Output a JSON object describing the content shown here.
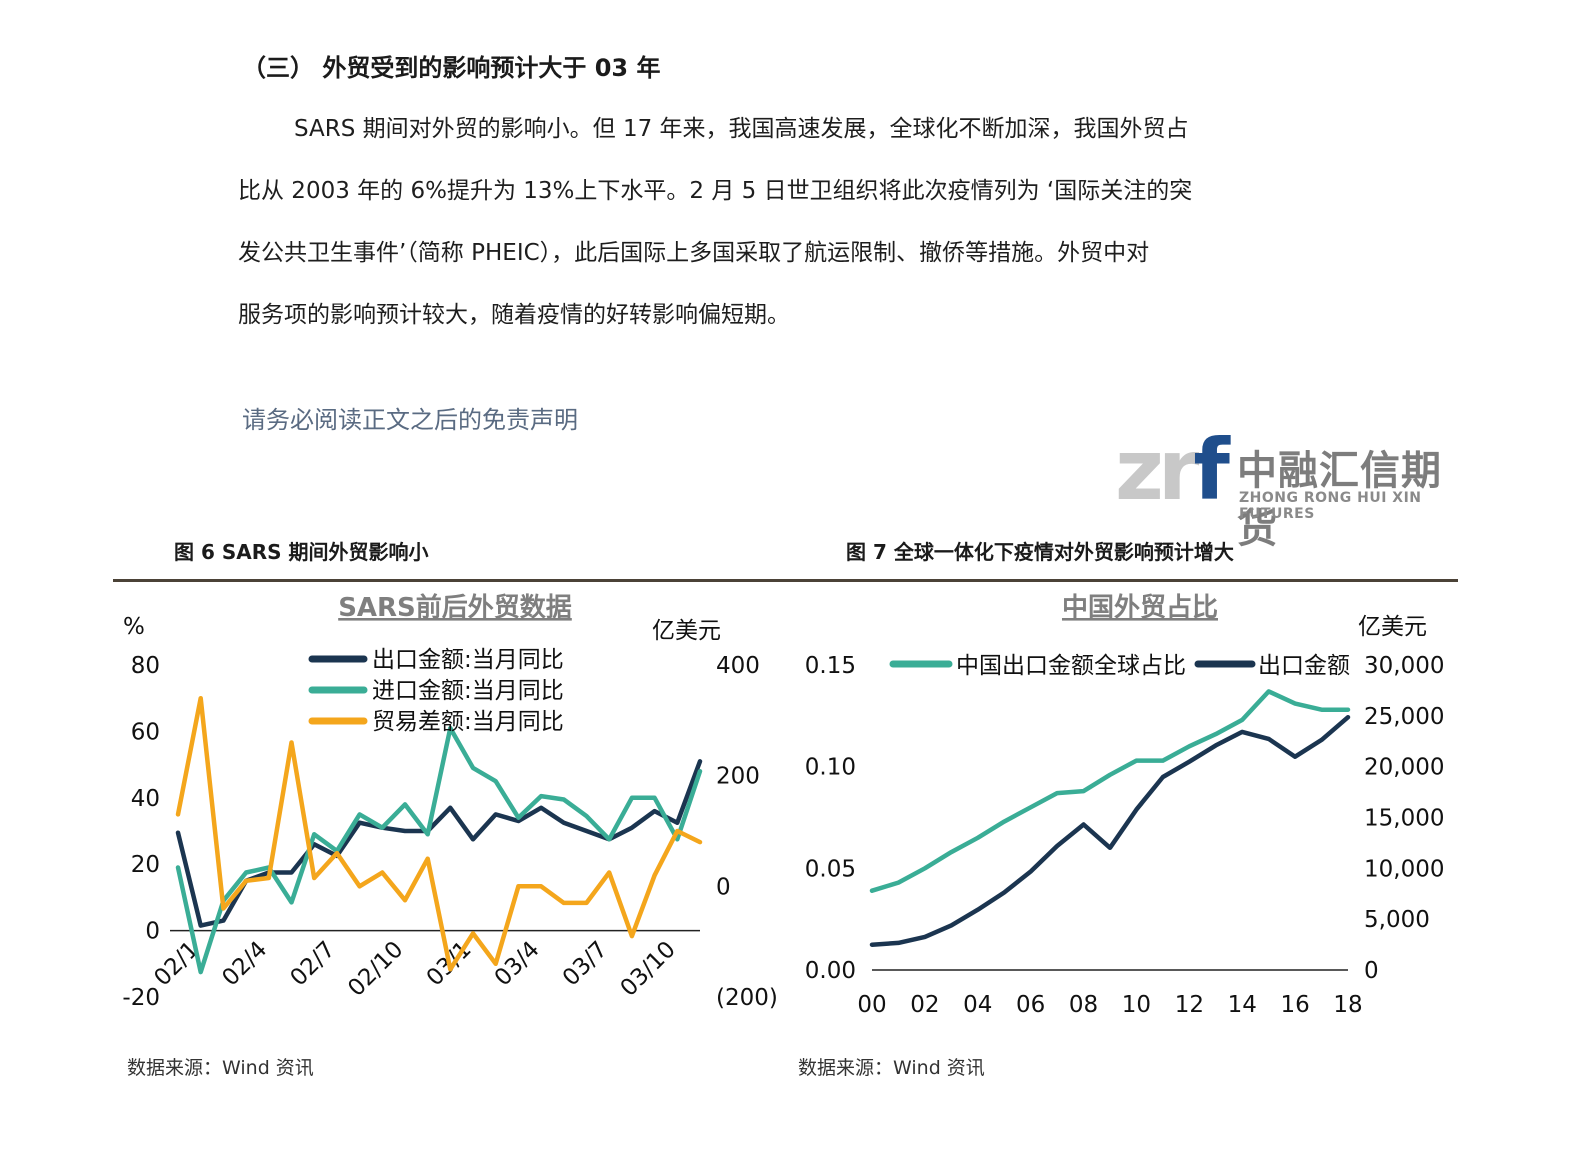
{
  "section": {
    "title": "（三）  外贸受到的影响预计大于 03 年"
  },
  "paragraph": {
    "lines": [
      "SARS 期间对外贸的影响小。但 17 年来，我国高速发展，全球化不断加深，我国外贸占",
      "比从 2003 年的 6%提升为 13%上下水平。2 月 5 日世卫组织将此次疫情列为 ‘国际关注的突",
      "发公共卫生事件’（简称 PHEIC），此后国际上多国采取了航运限制、撤侨等措施。外贸中对",
      "服务项的影响预计较大，随着疫情的好转影响偏短期。"
    ]
  },
  "disclaimer": "请务必阅读正文之后的免责声明",
  "logo": {
    "mark_zr": "zr",
    "mark_f": "f",
    "cn": "中融汇信期货",
    "en": "ZHONG RONG HUI XIN FUTURES"
  },
  "figures": {
    "fig6_caption": "图 6 SARS 期间外贸影响小",
    "fig7_caption": "图 7 全球一体化下疫情对外贸影响预计增大",
    "fig6_source": "数据来源：Wind 资讯",
    "fig7_source": "数据来源：Wind 资讯"
  },
  "colors": {
    "navy": "#1b3550",
    "teal": "#3aad96",
    "orange": "#f4a61c",
    "neg_label": "#c00000"
  },
  "chart_data": [
    {
      "type": "line",
      "title": "SARS前后外贸数据",
      "ylabel": "%",
      "y2label": "亿美元",
      "ylim": [
        -20,
        80
      ],
      "yticks": [
        "80",
        "60",
        "40",
        "20",
        "0",
        "-20"
      ],
      "y2lim": [
        -200,
        400
      ],
      "y2ticks": [
        "400",
        "200",
        "0",
        "(200)"
      ],
      "x_tick_labels": [
        "02/1",
        "02/4",
        "02/7",
        "02/10",
        "03/1",
        "03/4",
        "03/7",
        "03/10"
      ],
      "x_tick_index": [
        0,
        3,
        6,
        9,
        12,
        15,
        18,
        21
      ],
      "series": [
        {
          "name": "出口金额:当月同比",
          "axis": "left",
          "color": "#1b3550",
          "values": [
            29.5,
            1.5,
            3,
            15,
            17.5,
            17.5,
            26,
            22.5,
            32.5,
            31,
            30,
            30,
            37,
            27.5,
            35,
            33,
            37,
            32.5,
            30,
            27.5,
            31,
            36,
            32.5,
            51
          ]
        },
        {
          "name": "进口金额:当月同比",
          "axis": "left",
          "color": "#3aad96",
          "values": [
            19,
            -12.5,
            9,
            17.5,
            19,
            8.5,
            29,
            24,
            35,
            31,
            38,
            29,
            61,
            49,
            45,
            34,
            40.5,
            39.5,
            34.5,
            27.5,
            40,
            40,
            27.5,
            48
          ]
        },
        {
          "name": "贸易差额:当月同比",
          "axis": "right",
          "color": "#f4a61c",
          "values": [
            130,
            340,
            -40,
            10,
            15,
            260,
            15,
            60,
            0,
            25,
            -25,
            50,
            -150,
            -85,
            -140,
            0,
            0,
            -30,
            -30,
            25,
            -90,
            20,
            100,
            80
          ]
        }
      ]
    },
    {
      "type": "line",
      "title": "中国外贸占比",
      "y2label": "亿美元",
      "ylim": [
        0,
        0.15
      ],
      "yticks": [
        "0.15",
        "0.10",
        "0.05",
        "0.00"
      ],
      "y2lim": [
        0,
        30000
      ],
      "y2ticks": [
        "30,000",
        "25,000",
        "20,000",
        "15,000",
        "10,000",
        "5,000",
        "0"
      ],
      "x": [
        2000,
        2001,
        2002,
        2003,
        2004,
        2005,
        2006,
        2007,
        2008,
        2009,
        2010,
        2011,
        2012,
        2013,
        2014,
        2015,
        2016,
        2017,
        2018
      ],
      "x_tick_labels": [
        "00",
        "02",
        "04",
        "06",
        "08",
        "10",
        "12",
        "14",
        "16",
        "18"
      ],
      "series": [
        {
          "name": "中国出口金额全球占比",
          "axis": "left",
          "color": "#3aad96",
          "values": [
            0.039,
            0.043,
            0.05,
            0.058,
            0.065,
            0.073,
            0.08,
            0.087,
            0.088,
            0.096,
            0.103,
            0.103,
            0.11,
            0.116,
            0.123,
            0.137,
            0.131,
            0.128,
            0.128
          ]
        },
        {
          "name": "出口金额",
          "axis": "right",
          "color": "#1b3550",
          "values": [
            2492,
            2661,
            3256,
            4382,
            5933,
            7620,
            9690,
            12200,
            14307,
            12016,
            15778,
            18984,
            20487,
            22090,
            23423,
            22735,
            20976,
            22633,
            24867
          ]
        }
      ]
    }
  ]
}
